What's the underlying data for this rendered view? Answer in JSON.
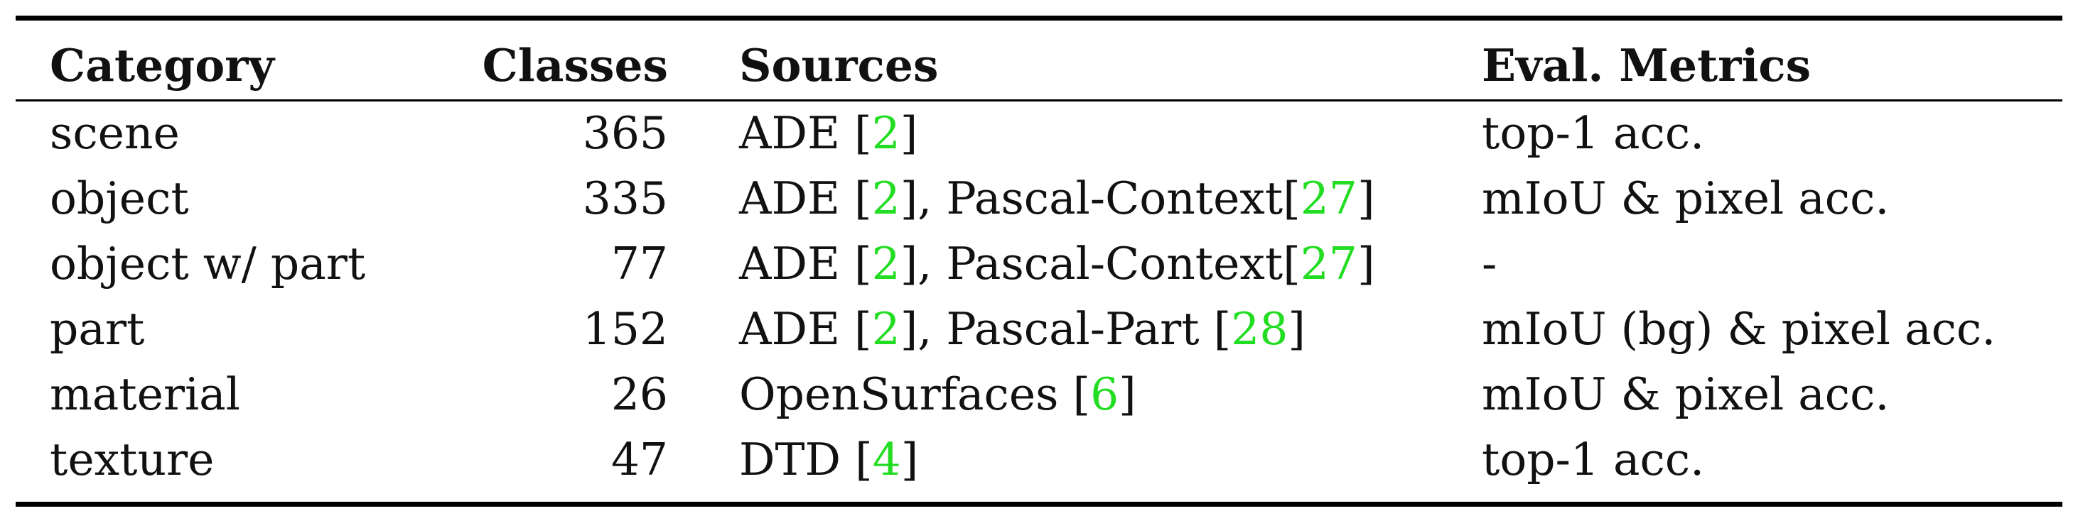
{
  "table": {
    "headers": {
      "category": "Category",
      "classes": "Classes",
      "sources": "Sources",
      "eval": "Eval. Metrics"
    },
    "ref_color": "#22dd22",
    "rows": [
      {
        "category": "scene",
        "classes": "365",
        "sources": [
          {
            "text": "ADE [",
            "ref": false
          },
          {
            "text": "2",
            "ref": true
          },
          {
            "text": "]",
            "ref": false
          }
        ],
        "eval": "top-1 acc."
      },
      {
        "category": "object",
        "classes": "335",
        "sources": [
          {
            "text": "ADE [",
            "ref": false
          },
          {
            "text": "2",
            "ref": true
          },
          {
            "text": "], Pascal-Context[",
            "ref": false
          },
          {
            "text": "27",
            "ref": true
          },
          {
            "text": "]",
            "ref": false
          }
        ],
        "eval": "mIoU & pixel acc."
      },
      {
        "category": "object w/ part",
        "classes": "77",
        "sources": [
          {
            "text": "ADE [",
            "ref": false
          },
          {
            "text": "2",
            "ref": true
          },
          {
            "text": "], Pascal-Context[",
            "ref": false
          },
          {
            "text": "27",
            "ref": true
          },
          {
            "text": "]",
            "ref": false
          }
        ],
        "eval": "-"
      },
      {
        "category": "part",
        "classes": "152",
        "sources": [
          {
            "text": "ADE [",
            "ref": false
          },
          {
            "text": "2",
            "ref": true
          },
          {
            "text": "], Pascal-Part [",
            "ref": false
          },
          {
            "text": "28",
            "ref": true
          },
          {
            "text": "]",
            "ref": false
          }
        ],
        "eval": "mIoU (bg) & pixel acc."
      },
      {
        "category": "material",
        "classes": "26",
        "sources": [
          {
            "text": "OpenSurfaces [",
            "ref": false
          },
          {
            "text": "6",
            "ref": true
          },
          {
            "text": "]",
            "ref": false
          }
        ],
        "eval": "mIoU & pixel acc."
      },
      {
        "category": "texture",
        "classes": "47",
        "sources": [
          {
            "text": "DTD [",
            "ref": false
          },
          {
            "text": "4",
            "ref": true
          },
          {
            "text": "]",
            "ref": false
          }
        ],
        "eval": "top-1 acc."
      }
    ]
  }
}
